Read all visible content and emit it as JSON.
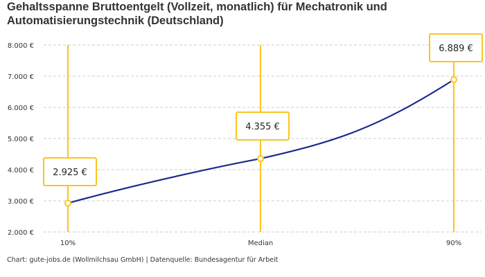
{
  "title": "Gehaltsspanne Bruttoentgelt (Vollzeit, monatlich) für Mechatronik und Automatisierungstechnik (Deutschland)",
  "footer": "Chart: gute-jobs.de (Wollmilchsau GmbH) | Datenquelle: Bundesagentur für Arbeit",
  "chart_data": {
    "type": "line",
    "categories": [
      "10%",
      "Median",
      "90%"
    ],
    "values": [
      2925,
      4355,
      6889
    ],
    "data_labels": [
      "2.925 €",
      "4.355 €",
      "6.889 €"
    ],
    "ylim": [
      2000,
      8000
    ],
    "yticks": [
      2000,
      3000,
      4000,
      5000,
      6000,
      7000,
      8000
    ],
    "ytick_labels": [
      "2.000 €",
      "3.000 €",
      "4.000 €",
      "5.000 €",
      "6.000 €",
      "7.000 €",
      "8.000 €"
    ],
    "grid": true,
    "colors": {
      "line": "#1a2a8c",
      "marker": "#fcc419",
      "grid": "#cccccc"
    }
  }
}
